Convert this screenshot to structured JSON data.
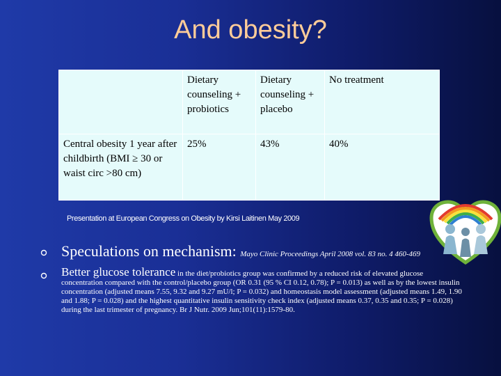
{
  "title": "And obesity?",
  "table": {
    "headers": [
      "",
      "Dietary counseling + probiotics",
      "Dietary counseling + placebo",
      "No treatment"
    ],
    "rows": [
      {
        "label": "Central obesity 1 year after childbirth (BMI ≥ 30 or waist circ >80 cm)",
        "values": [
          "25%",
          "43%",
          "40%"
        ]
      }
    ]
  },
  "citation": "Presentation at European Congress on Obesity by Kirsi Laitinen May 2009",
  "bullets": [
    {
      "heading": "Speculations on mechanism:",
      "detail": "Mayo Clinic Proceedings April 2008 vol. 83 no. 4 460-469"
    },
    {
      "heading": "Better glucose tolerance",
      "detail": "in the diet/probiotics group was confirmed by a reduced risk of elevated glucose concentration compared with the control/placebo group (OR 0.31 (95 % CI 0.12, 0.78); P = 0.013) as well as by the lowest insulin concentration (adjusted means 7.55, 9.32 and 9.27 mU/l; P = 0.032) and homeostasis model assessment (adjusted means 1.49, 1.90 and 1.88; P = 0.028) and the highest quantitative insulin sensitivity check index (adjusted means 0.37, 0.35 and 0.35; P = 0.028) during the last trimester of pregnancy. Br J Nutr. 2009 Jun;101(11):1579-80."
    }
  ],
  "colors": {
    "title": "#ffcc99",
    "table_bg": "#e5fbfb"
  }
}
